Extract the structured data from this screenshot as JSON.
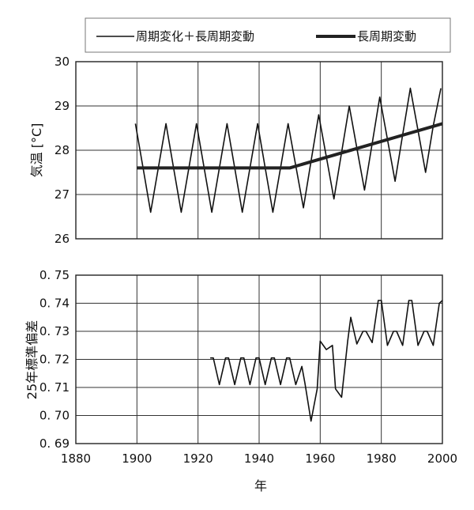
{
  "chart_data": [
    {
      "type": "line",
      "ylabel": "気温 [°C]",
      "xlim": [
        1880,
        2000
      ],
      "ylim": [
        26,
        30
      ],
      "x_ticks": [
        "1880",
        "1900",
        "1920",
        "1940",
        "1960",
        "1980",
        "2000"
      ],
      "y_ticks": [
        "26",
        "27",
        "28",
        "29",
        "30"
      ],
      "legend_position": "top",
      "series": [
        {
          "name": "周期変化＋長周期変動",
          "style": "thin",
          "x": [
            1899.5,
            1902,
            1904.5,
            1907,
            1909.5,
            1912,
            1914.5,
            1917,
            1919.5,
            1922,
            1924.5,
            1927,
            1929.5,
            1932,
            1934.5,
            1937,
            1939.5,
            1942,
            1944.5,
            1947,
            1949.5,
            1952,
            1954.5,
            1957,
            1959.5,
            1962,
            1964.5,
            1967,
            1969.5,
            1972,
            1974.5,
            1977,
            1979.5,
            1982,
            1984.5,
            1987,
            1989.5,
            1992,
            1994.5,
            1997,
            1999.5
          ],
          "y": [
            28.6,
            27.6,
            26.6,
            27.6,
            28.6,
            27.6,
            26.6,
            27.6,
            28.6,
            27.6,
            26.6,
            27.6,
            28.6,
            27.6,
            26.6,
            27.6,
            28.6,
            27.6,
            26.6,
            27.6,
            28.6,
            27.65,
            26.7,
            27.75,
            28.8,
            27.85,
            26.9,
            27.95,
            29.0,
            28.05,
            27.1,
            28.15,
            29.2,
            28.25,
            27.3,
            28.35,
            29.4,
            28.45,
            27.5,
            28.55,
            29.4
          ]
        },
        {
          "name": "長周期変動",
          "style": "thick",
          "x": [
            1900,
            1950,
            2000
          ],
          "y": [
            27.6,
            27.6,
            28.6
          ]
        }
      ]
    },
    {
      "type": "line",
      "xlabel": "年",
      "ylabel": "25年標準偏差",
      "xlim": [
        1880,
        2000
      ],
      "ylim": [
        0.69,
        0.75
      ],
      "x_ticks": [
        "1880",
        "1900",
        "1920",
        "1940",
        "1960",
        "1980",
        "2000"
      ],
      "y_ticks": [
        "0. 69",
        "0. 70",
        "0. 71",
        "0. 72",
        "0. 73",
        "0. 74",
        "0. 75"
      ],
      "series": [
        {
          "x": [
            1924,
            1925,
            1927,
            1929,
            1930,
            1932,
            1934,
            1935,
            1937,
            1939,
            1940,
            1942,
            1944,
            1945,
            1947,
            1949,
            1950,
            1952,
            1954,
            1955,
            1957,
            1959,
            1960,
            1962,
            1964,
            1965,
            1967,
            1969,
            1970,
            1972,
            1974,
            1975,
            1977,
            1979,
            1980,
            1982,
            1984,
            1985,
            1987,
            1989,
            1990,
            1992,
            1994,
            1995,
            1997,
            1999,
            2000
          ],
          "y": [
            0.7205,
            0.7205,
            0.711,
            0.7205,
            0.7205,
            0.711,
            0.7205,
            0.7205,
            0.711,
            0.7205,
            0.7205,
            0.711,
            0.7205,
            0.7205,
            0.711,
            0.7205,
            0.7205,
            0.711,
            0.7175,
            0.7115,
            0.698,
            0.7095,
            0.7265,
            0.7235,
            0.725,
            0.7095,
            0.7065,
            0.7265,
            0.735,
            0.7255,
            0.73,
            0.73,
            0.726,
            0.741,
            0.741,
            0.725,
            0.73,
            0.73,
            0.725,
            0.741,
            0.741,
            0.725,
            0.73,
            0.73,
            0.725,
            0.74,
            0.741
          ]
        }
      ]
    }
  ]
}
